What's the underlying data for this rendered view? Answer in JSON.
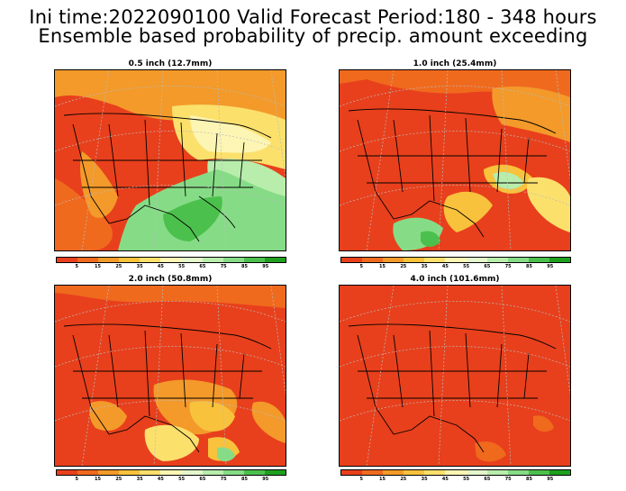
{
  "header": {
    "line1": "Ini time:2022090100  Valid Forecast Period:180 - 348 hours",
    "line2": "Ensemble based probability of precip. amount exceeding"
  },
  "panels": [
    {
      "title": "0.5 inch (12.7mm)"
    },
    {
      "title": "1.0 inch (25.4mm)"
    },
    {
      "title": "2.0 inch (50.8mm)"
    },
    {
      "title": "4.0 inch (101.6mm)"
    }
  ],
  "colorbar": {
    "colors": [
      "#e8401c",
      "#f06a1e",
      "#f39a2a",
      "#f8c23c",
      "#fbe06c",
      "#fdf5b4",
      "#e4f7cc",
      "#b8edac",
      "#86dc86",
      "#4cc04c",
      "#1ea01e"
    ],
    "labels": [
      "5",
      "15",
      "25",
      "35",
      "45",
      "55",
      "65",
      "75",
      "85",
      "95"
    ]
  },
  "legend_colors": {
    "low_prob": "#e8401c",
    "mid_prob": "#fbe06c",
    "high_prob": "#4cc04c"
  }
}
